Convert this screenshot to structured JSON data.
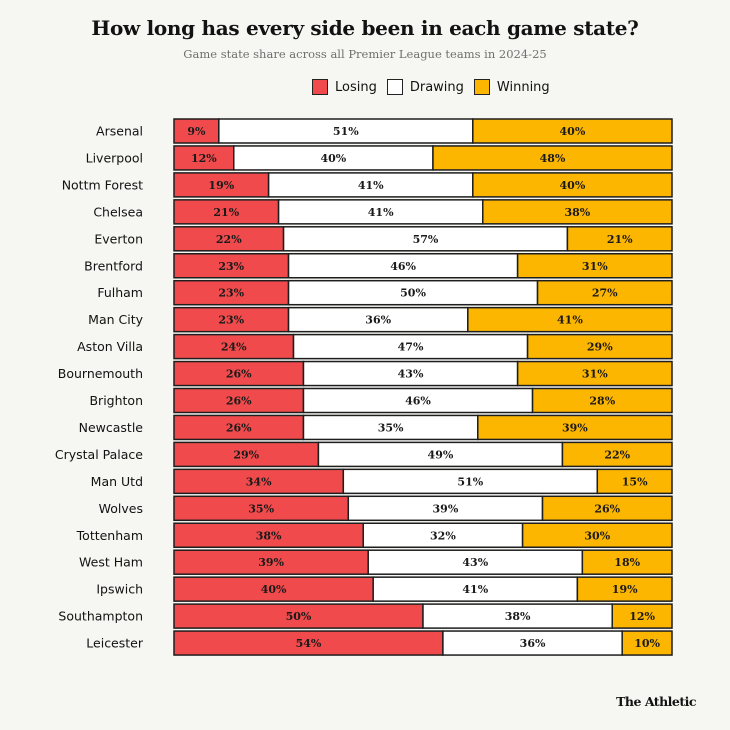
{
  "chart_data": {
    "type": "bar",
    "orientation": "horizontal",
    "stacked": true,
    "title": "How long has every side been in each game state?",
    "subtitle": "Game state share across all Premier League teams in 2024-25",
    "xlabel": "",
    "ylabel": "",
    "xlim": [
      0,
      100
    ],
    "value_suffix": "%",
    "grid": false,
    "legend_position": "top-center",
    "categories": [
      "Arsenal",
      "Liverpool",
      "Nottm Forest",
      "Chelsea",
      "Everton",
      "Brentford",
      "Fulham",
      "Man City",
      "Aston Villa",
      "Bournemouth",
      "Brighton",
      "Newcastle",
      "Crystal Palace",
      "Man Utd",
      "Wolves",
      "Tottenham",
      "West Ham",
      "Ipswich",
      "Southampton",
      "Leicester"
    ],
    "series": [
      {
        "name": "Losing",
        "color": "#f04a4c",
        "values": [
          9,
          12,
          19,
          21,
          22,
          23,
          23,
          23,
          24,
          26,
          26,
          26,
          29,
          34,
          35,
          38,
          39,
          40,
          50,
          54
        ]
      },
      {
        "name": "Drawing",
        "color": "#ffffff",
        "values": [
          51,
          40,
          41,
          41,
          57,
          46,
          50,
          36,
          47,
          43,
          46,
          35,
          49,
          51,
          39,
          32,
          43,
          41,
          38,
          36
        ]
      },
      {
        "name": "Winning",
        "color": "#fdb600",
        "values": [
          40,
          48,
          40,
          38,
          21,
          31,
          27,
          41,
          29,
          31,
          28,
          39,
          22,
          15,
          26,
          30,
          18,
          19,
          12,
          10
        ]
      }
    ]
  },
  "legend": {
    "items": [
      {
        "label": "Losing",
        "color": "#f04a4c"
      },
      {
        "label": "Drawing",
        "color": "#ffffff"
      },
      {
        "label": "Winning",
        "color": "#fdb600"
      }
    ]
  },
  "brand": "The Athletic"
}
